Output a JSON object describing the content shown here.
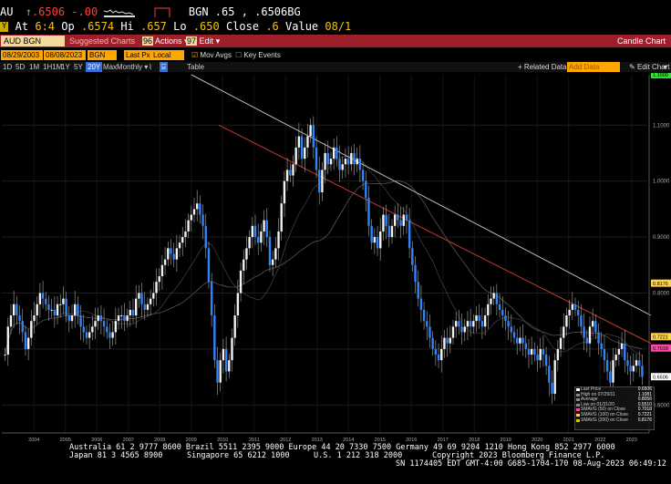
{
  "quote": {
    "ticker": "AU",
    "arrow": "↑",
    "last": ".6506",
    "change": "-.00",
    "source_label": "BGN .65 , .6506BG",
    "at_label": "At",
    "at_time": "6:4",
    "open_label": "Op",
    "open": ".6574",
    "high_label": "Hi",
    "high": ".657",
    "low_label": "Lo",
    "low": ".650",
    "close_label": "Close",
    "close": ".6",
    "value_label": "Value",
    "value_date": "08/1"
  },
  "cmdbar": {
    "ticker": "AUD BGN Curncy",
    "suggested": "Suggested Charts",
    "actions_num": "96",
    "actions": "Actions",
    "edit_num": "97",
    "edit": "Edit",
    "title": "Candle Chart"
  },
  "toolbar": {
    "start_date": "08/29/2003",
    "end_date": "08/08/2023",
    "source": "BGN",
    "field": "Last Px",
    "currency": "Local CCY",
    "mov_avgs": "Mov Avgs",
    "key_events": "Key Events",
    "periods": [
      "1D",
      "5D",
      "1M",
      "1H1M",
      "1Y",
      "5Y",
      "20Y",
      "Max"
    ],
    "selected_period": "20Y",
    "frequency": "Monthly",
    "table": "Table",
    "related_data": "Related Data",
    "add_data": "Add Data",
    "edit_chart": "Edit Chart"
  },
  "chart_data": {
    "type": "candlestick",
    "x_ticks": [
      "2004",
      "2005",
      "2006",
      "2007",
      "2008",
      "2009",
      "2010",
      "2011",
      "2012",
      "2013",
      "2014",
      "2015",
      "2016",
      "2017",
      "2018",
      "2019",
      "2020",
      "2021",
      "2022",
      "2023"
    ],
    "y_ticks": [
      "1.1000",
      "1.0000",
      "0.9000",
      "0.8000",
      "0.7000",
      "0.6000"
    ],
    "ylim": [
      0.55,
      1.19
    ],
    "price_tags": [
      {
        "label": "1.1000",
        "value": 1.19,
        "color": "#33dd33"
      },
      {
        "label": "0.8176",
        "value": 0.8176,
        "color": "#ffd34d"
      },
      {
        "label": "0.7221",
        "value": 0.7221,
        "color": "#ffd34d"
      },
      {
        "label": "0.7018",
        "value": 0.7018,
        "color": "#ff44aa"
      },
      {
        "label": "0.6506",
        "value": 0.6506,
        "color": "#ffffff"
      }
    ],
    "closes": [
      0.69,
      0.74,
      0.76,
      0.78,
      0.76,
      0.75,
      0.73,
      0.7,
      0.72,
      0.75,
      0.76,
      0.78,
      0.8,
      0.79,
      0.78,
      0.77,
      0.77,
      0.76,
      0.78,
      0.78,
      0.79,
      0.76,
      0.75,
      0.76,
      0.78,
      0.76,
      0.74,
      0.73,
      0.72,
      0.73,
      0.74,
      0.75,
      0.76,
      0.75,
      0.74,
      0.73,
      0.72,
      0.73,
      0.75,
      0.76,
      0.76,
      0.75,
      0.76,
      0.77,
      0.76,
      0.79,
      0.8,
      0.78,
      0.77,
      0.78,
      0.79,
      0.8,
      0.82,
      0.83,
      0.85,
      0.86,
      0.88,
      0.87,
      0.86,
      0.88,
      0.89,
      0.9,
      0.91,
      0.93,
      0.94,
      0.95,
      0.96,
      0.94,
      0.92,
      0.88,
      0.82,
      0.76,
      0.68,
      0.64,
      0.68,
      0.7,
      0.66,
      0.68,
      0.72,
      0.76,
      0.8,
      0.84,
      0.86,
      0.88,
      0.9,
      0.92,
      0.9,
      0.89,
      0.91,
      0.93,
      0.9,
      0.85,
      0.86,
      0.88,
      0.91,
      0.96,
      1.0,
      1.02,
      1.01,
      1.03,
      1.06,
      1.08,
      1.04,
      1.06,
      1.08,
      1.1,
      1.06,
      1.02,
      0.98,
      1.02,
      1.05,
      1.03,
      1.04,
      1.06,
      1.04,
      1.02,
      1.03,
      1.04,
      1.03,
      1.05,
      1.03,
      1.04,
      1.02,
      1.0,
      0.97,
      0.92,
      0.89,
      0.9,
      0.88,
      0.91,
      0.94,
      0.92,
      0.9,
      0.92,
      0.94,
      0.93,
      0.92,
      0.94,
      0.93,
      0.88,
      0.85,
      0.82,
      0.79,
      0.77,
      0.75,
      0.74,
      0.72,
      0.7,
      0.69,
      0.68,
      0.7,
      0.72,
      0.71,
      0.72,
      0.74,
      0.75,
      0.74,
      0.73,
      0.74,
      0.75,
      0.74,
      0.75,
      0.76,
      0.75,
      0.74,
      0.76,
      0.78,
      0.79,
      0.8,
      0.78,
      0.77,
      0.76,
      0.75,
      0.74,
      0.73,
      0.72,
      0.71,
      0.72,
      0.71,
      0.7,
      0.69,
      0.7,
      0.69,
      0.68,
      0.7,
      0.69,
      0.67,
      0.64,
      0.62,
      0.68,
      0.7,
      0.72,
      0.74,
      0.76,
      0.77,
      0.78,
      0.77,
      0.76,
      0.74,
      0.72,
      0.71,
      0.74,
      0.75,
      0.73,
      0.71,
      0.7,
      0.68,
      0.66,
      0.64,
      0.68,
      0.69,
      0.7,
      0.71,
      0.68,
      0.67,
      0.66,
      0.67,
      0.68,
      0.67,
      0.65
    ]
  },
  "legend": {
    "items": [
      {
        "label": "Last Price",
        "value": "0.6506",
        "color": "#ffffff"
      },
      {
        "label": "High on 07/29/11",
        "value": "1.1081",
        "color": "#888888"
      },
      {
        "label": "Average",
        "value": "0.8056",
        "color": "#888888"
      },
      {
        "label": "Low on 01/31/20",
        "value": "0.5510",
        "color": "#888888"
      },
      {
        "label": "SMAVG (50) on Close",
        "value": "0.7018",
        "color": "#ff44aa"
      },
      {
        "label": "SMAVG (100) on Close",
        "value": "0.7221",
        "color": "#ffd34d"
      },
      {
        "label": "SMAVG (200) on Close",
        "value": "0.8176",
        "color": "#cccc00"
      }
    ]
  },
  "footer": {
    "line1": "Australia 61 2 9777 8600 Brazil 5511 2395 9000 Europe 44 20 7330 7500 Germany 49 69 9204 1210 Hong Kong 852 2977 6000",
    "line2a": "Japan 81 3 4565 8900",
    "line2b": "Singapore 65 6212 1000",
    "line2c": "U.S. 1 212 318 2000",
    "line2d": "Copyright 2023 Bloomberg Finance L.P.",
    "line3": "SN 1174405 EDT  GMT-4:00 G685-1704-170 08-Aug-2023 06:49:12"
  }
}
